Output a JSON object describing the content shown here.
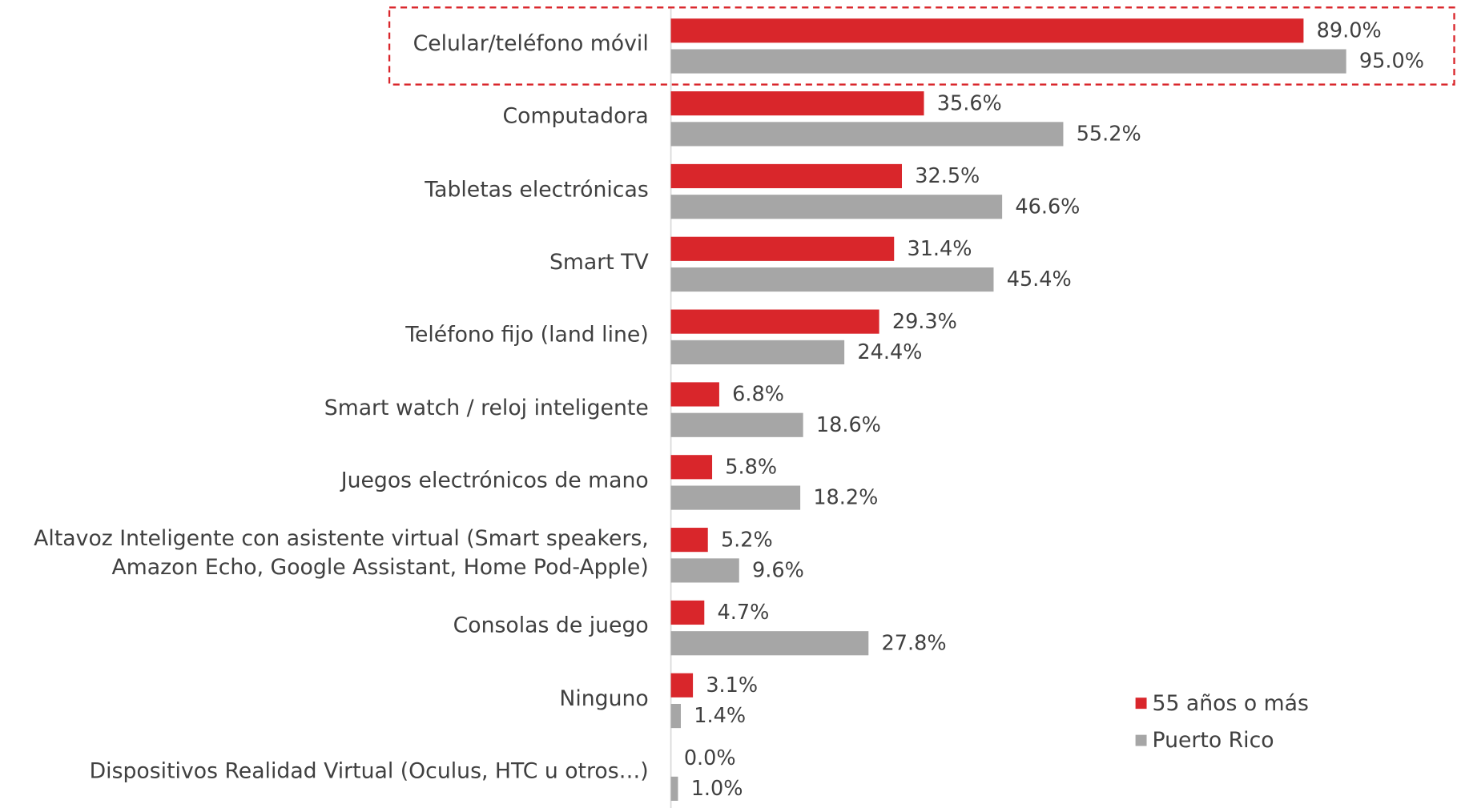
{
  "chart_data": {
    "type": "hbar",
    "categories": [
      "Celular/teléfono móvil",
      "Computadora",
      "Tabletas electrónicas",
      "Smart TV",
      "Teléfono fijo (land line)",
      "Smart watch / reloj inteligente",
      "Juegos electrónicos de mano",
      "Altavoz Inteligente con asistente virtual (Smart speakers, Amazon Echo, Google Assistant, Home Pod-Apple)",
      "Consolas de juego",
      "Ninguno",
      "Dispositivos Realidad Virtual (Oculus, HTC u otros…)"
    ],
    "series": [
      {
        "name": "55 años o más",
        "color": "#d9262b",
        "values": [
          89.0,
          35.6,
          32.5,
          31.4,
          29.3,
          6.8,
          5.8,
          5.2,
          4.7,
          3.1,
          0.0
        ],
        "value_labels": [
          "89.0%",
          "35.6%",
          "32.5%",
          "31.4%",
          "29.3%",
          "6.8%",
          "5.8%",
          "5.2%",
          "4.7%",
          "3.1%",
          "0.0%"
        ]
      },
      {
        "name": "Puerto Rico",
        "color": "#a6a6a6",
        "values": [
          95.0,
          55.2,
          46.6,
          45.4,
          24.4,
          18.6,
          18.2,
          9.6,
          27.8,
          1.4,
          1.0
        ],
        "value_labels": [
          "95.0%",
          "55.2%",
          "46.6%",
          "45.4%",
          "24.4%",
          "18.6%",
          "18.2%",
          "9.6%",
          "27.8%",
          "1.4%",
          "1.0%"
        ]
      }
    ],
    "xlim": [
      0,
      100
    ],
    "legend": "bottom-right"
  }
}
